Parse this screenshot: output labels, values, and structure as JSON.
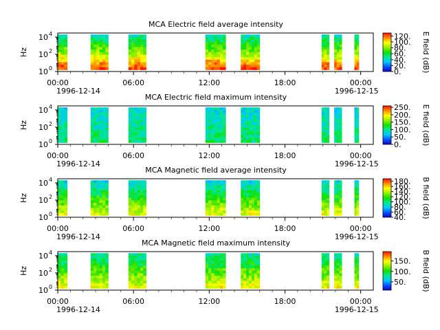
{
  "chart_data": [
    {
      "type": "heatmap",
      "title": "MCA  Electric field average intensity",
      "ylabel": "Hz",
      "y_ticks": [
        "10",
        "10",
        "10"
      ],
      "y_tick_exps": [
        "0",
        "2",
        "4"
      ],
      "ylim": [
        1,
        30000
      ],
      "y_scale": "log",
      "x_ticks": [
        "00:00",
        "06:00",
        "12:00",
        "18:00",
        "00:00"
      ],
      "x_dates": [
        "1996-12-14",
        "1996-12-15"
      ],
      "xlim": [
        "1996-12-14 00:00",
        "1996-12-15 01:00"
      ],
      "colorbar_label": "E field (dB)",
      "colorbar_ticks": [
        "0.",
        "20.",
        "40.",
        "60.",
        "80.",
        "100.",
        "120."
      ],
      "colorbar_range": [
        0,
        130
      ],
      "data_segments": [
        {
          "start": 0.0,
          "end": 0.75
        },
        {
          "start": 2.6,
          "end": 4.0
        },
        {
          "start": 5.6,
          "end": 7.0
        },
        {
          "start": 11.7,
          "end": 13.3
        },
        {
          "start": 14.5,
          "end": 16.0
        },
        {
          "start": 20.9,
          "end": 21.5
        },
        {
          "start": 21.9,
          "end": 22.5
        },
        {
          "start": 23.5,
          "end": 23.85
        }
      ],
      "colorscale": "rainbow"
    },
    {
      "type": "heatmap",
      "title": "MCA  Electric field maximum intensity",
      "ylabel": "Hz",
      "y_ticks": [
        "10",
        "10",
        "10"
      ],
      "y_tick_exps": [
        "0",
        "2",
        "4"
      ],
      "ylim": [
        1,
        30000
      ],
      "y_scale": "log",
      "x_ticks": [
        "00:00",
        "06:00",
        "12:00",
        "18:00",
        "00:00"
      ],
      "x_dates": [
        "1996-12-14",
        "1996-12-15"
      ],
      "xlim": [
        "1996-12-14 00:00",
        "1996-12-15 01:00"
      ],
      "colorbar_label": "E field (dB)",
      "colorbar_ticks": [
        "0.",
        "50.",
        "100.",
        "150.",
        "200.",
        "250."
      ],
      "colorbar_range": [
        0,
        260
      ],
      "data_segments": [
        {
          "start": 0.0,
          "end": 0.75
        },
        {
          "start": 2.6,
          "end": 4.0
        },
        {
          "start": 5.6,
          "end": 7.0
        },
        {
          "start": 11.7,
          "end": 13.3
        },
        {
          "start": 14.5,
          "end": 16.0
        },
        {
          "start": 20.9,
          "end": 21.5
        },
        {
          "start": 21.9,
          "end": 22.5
        },
        {
          "start": 23.5,
          "end": 23.85
        }
      ],
      "colorscale": "rainbow"
    },
    {
      "type": "heatmap",
      "title": "MCA  Magnetic field average intensity",
      "ylabel": "Hz",
      "y_ticks": [
        "10",
        "10",
        "10"
      ],
      "y_tick_exps": [
        "0",
        "2",
        "4"
      ],
      "ylim": [
        1,
        30000
      ],
      "y_scale": "log",
      "x_ticks": [
        "00:00",
        "06:00",
        "12:00",
        "18:00",
        "00:00"
      ],
      "x_dates": [
        "1996-12-14",
        "1996-12-15"
      ],
      "xlim": [
        "1996-12-14 00:00",
        "1996-12-15 01:00"
      ],
      "colorbar_label": "B field (dB)",
      "colorbar_ticks": [
        "40.",
        "60.",
        "80.",
        "100.",
        "120.",
        "140.",
        "160.",
        "180."
      ],
      "colorbar_range": [
        40,
        190
      ],
      "data_segments": [
        {
          "start": 0.0,
          "end": 0.75
        },
        {
          "start": 2.6,
          "end": 4.0
        },
        {
          "start": 5.6,
          "end": 7.0
        },
        {
          "start": 11.7,
          "end": 13.3
        },
        {
          "start": 14.5,
          "end": 16.0
        },
        {
          "start": 20.9,
          "end": 21.5
        },
        {
          "start": 21.9,
          "end": 22.5
        },
        {
          "start": 23.5,
          "end": 23.85
        }
      ],
      "colorscale": "rainbow"
    },
    {
      "type": "heatmap",
      "title": "MCA  Magnetic field maximum intensity",
      "ylabel": "Hz",
      "y_ticks": [
        "10",
        "10",
        "10"
      ],
      "y_tick_exps": [
        "0",
        "2",
        "4"
      ],
      "ylim": [
        1,
        30000
      ],
      "y_scale": "log",
      "x_ticks": [
        "00:00",
        "06:00",
        "12:00",
        "18:00",
        "00:00"
      ],
      "x_dates": [
        "1996-12-14",
        "1996-12-15"
      ],
      "xlim": [
        "1996-12-14 00:00",
        "1996-12-15 01:00"
      ],
      "colorbar_label": "B field (dB)",
      "colorbar_ticks": [
        "50.",
        "100.",
        "150."
      ],
      "colorbar_range": [
        10,
        195
      ],
      "data_segments": [
        {
          "start": 0.0,
          "end": 0.75
        },
        {
          "start": 2.6,
          "end": 4.0
        },
        {
          "start": 5.6,
          "end": 7.0
        },
        {
          "start": 11.7,
          "end": 13.3
        },
        {
          "start": 14.5,
          "end": 16.0
        },
        {
          "start": 20.9,
          "end": 21.5
        },
        {
          "start": 21.9,
          "end": 22.5
        },
        {
          "start": 23.5,
          "end": 23.85
        }
      ],
      "colorscale": "rainbow"
    }
  ]
}
